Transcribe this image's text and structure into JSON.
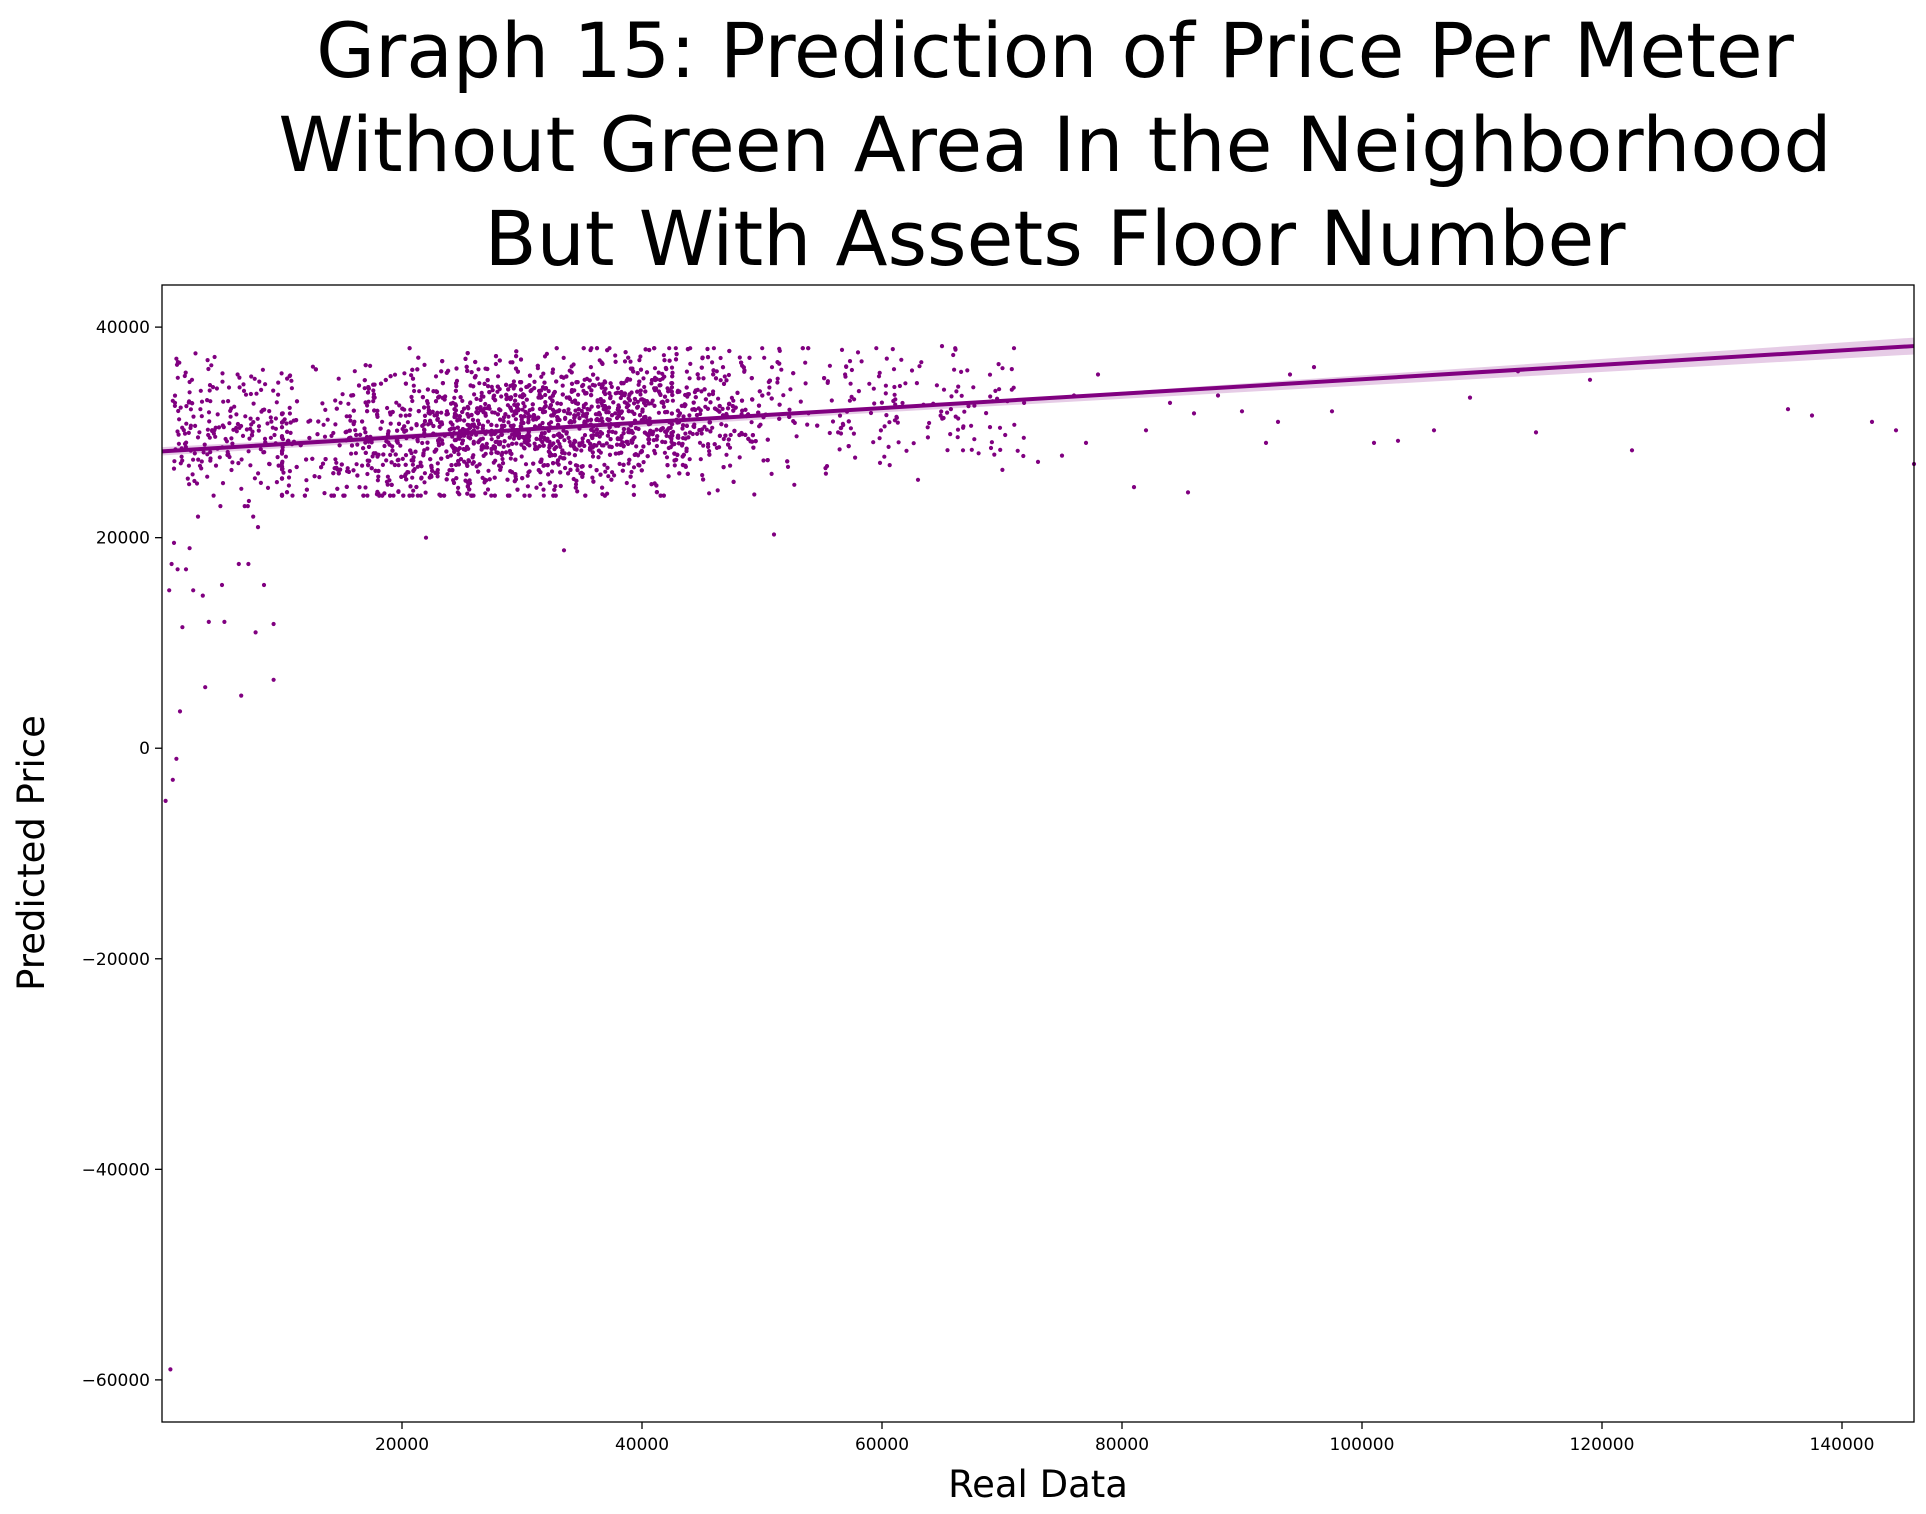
{
  "chart_data": {
    "type": "scatter",
    "title_lines": [
      "Graph 15: Prediction of Price Per Meter ",
      " Without Green Area  In the Neighborhood",
      "But With Assets Floor Number"
    ],
    "xlabel": "Real Data",
    "ylabel": "Predicted Price",
    "xlim": [
      0,
      146000
    ],
    "ylim": [
      -64000,
      44000
    ],
    "x_ticks": [
      20000,
      40000,
      60000,
      80000,
      100000,
      120000,
      140000
    ],
    "y_ticks": [
      40000,
      20000,
      0,
      -20000,
      -40000,
      -60000
    ],
    "grid": false,
    "legend": "none",
    "color": "#800080",
    "regression_line": {
      "x": [
        0,
        146000
      ],
      "y": [
        28200,
        38200
      ]
    },
    "confidence_band": {
      "x": [
        0,
        60000,
        146000
      ],
      "lower": [
        27800,
        31900,
        37400
      ],
      "upper": [
        28600,
        32300,
        39000
      ]
    },
    "main_cluster": {
      "x_range": [
        10000,
        55000
      ],
      "y_range": [
        24000,
        38000
      ],
      "count": 2600
    },
    "points": [
      {
        "x": 300,
        "y": -5000
      },
      {
        "x": 700,
        "y": -59000
      },
      {
        "x": 900,
        "y": -3000
      },
      {
        "x": 1200,
        "y": -1000
      },
      {
        "x": 1500,
        "y": 3500
      },
      {
        "x": 600,
        "y": 15000
      },
      {
        "x": 800,
        "y": 17500
      },
      {
        "x": 1000,
        "y": 19500
      },
      {
        "x": 1300,
        "y": 17000
      },
      {
        "x": 1700,
        "y": 11500
      },
      {
        "x": 2000,
        "y": 17000
      },
      {
        "x": 2300,
        "y": 19000
      },
      {
        "x": 2600,
        "y": 15000
      },
      {
        "x": 3000,
        "y": 22000
      },
      {
        "x": 3400,
        "y": 14500
      },
      {
        "x": 3600,
        "y": 5800
      },
      {
        "x": 3900,
        "y": 12000
      },
      {
        "x": 4300,
        "y": 24000
      },
      {
        "x": 5000,
        "y": 15500
      },
      {
        "x": 5200,
        "y": 12000
      },
      {
        "x": 6400,
        "y": 17500
      },
      {
        "x": 6600,
        "y": 5000
      },
      {
        "x": 7200,
        "y": 17500
      },
      {
        "x": 7800,
        "y": 11000
      },
      {
        "x": 8500,
        "y": 15500
      },
      {
        "x": 9300,
        "y": 11800
      },
      {
        "x": 9300,
        "y": 6500
      },
      {
        "x": 8000,
        "y": 21000
      },
      {
        "x": 7600,
        "y": 22000
      },
      {
        "x": 1200,
        "y": 37000
      },
      {
        "x": 900,
        "y": 33000
      },
      {
        "x": 2500,
        "y": 35000
      },
      {
        "x": 33500,
        "y": 18800
      },
      {
        "x": 51000,
        "y": 20300
      },
      {
        "x": 22000,
        "y": 20000
      },
      {
        "x": 81000,
        "y": 24800
      },
      {
        "x": 85500,
        "y": 24300
      },
      {
        "x": 77000,
        "y": 29000
      },
      {
        "x": 78000,
        "y": 35500
      },
      {
        "x": 82000,
        "y": 30200
      },
      {
        "x": 84000,
        "y": 32800
      },
      {
        "x": 86000,
        "y": 31800
      },
      {
        "x": 88000,
        "y": 33500
      },
      {
        "x": 90000,
        "y": 32000
      },
      {
        "x": 92000,
        "y": 29000
      },
      {
        "x": 93000,
        "y": 31000
      },
      {
        "x": 94000,
        "y": 35500
      },
      {
        "x": 96000,
        "y": 36200
      },
      {
        "x": 97500,
        "y": 32000
      },
      {
        "x": 101000,
        "y": 29000
      },
      {
        "x": 103000,
        "y": 29200
      },
      {
        "x": 106000,
        "y": 30200
      },
      {
        "x": 109000,
        "y": 33300
      },
      {
        "x": 113000,
        "y": 35800
      },
      {
        "x": 114500,
        "y": 30000
      },
      {
        "x": 119000,
        "y": 35000
      },
      {
        "x": 122500,
        "y": 28300
      },
      {
        "x": 135500,
        "y": 32200
      },
      {
        "x": 137500,
        "y": 31600
      },
      {
        "x": 142500,
        "y": 31000
      },
      {
        "x": 144500,
        "y": 30200
      },
      {
        "x": 146000,
        "y": 27000
      },
      {
        "x": 71000,
        "y": 38000
      },
      {
        "x": 73000,
        "y": 27200
      },
      {
        "x": 75000,
        "y": 27800
      },
      {
        "x": 76000,
        "y": 33500
      },
      {
        "x": 69000,
        "y": 30500
      },
      {
        "x": 65000,
        "y": 38200
      },
      {
        "x": 63000,
        "y": 25500
      },
      {
        "x": 58000,
        "y": 37600
      },
      {
        "x": 61000,
        "y": 36000
      }
    ]
  }
}
